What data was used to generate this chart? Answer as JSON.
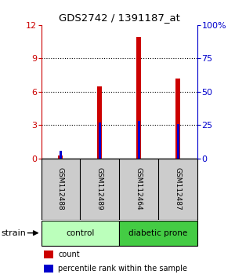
{
  "title": "GDS2742 / 1391187_at",
  "samples": [
    "GSM112488",
    "GSM112489",
    "GSM112464",
    "GSM112487"
  ],
  "counts": [
    0.25,
    6.5,
    10.9,
    7.2
  ],
  "percentile_ranks": [
    5.5,
    27.0,
    28.0,
    25.5
  ],
  "ylim_left": [
    0,
    12
  ],
  "ylim_right": [
    0,
    100
  ],
  "yticks_left": [
    0,
    3,
    6,
    9,
    12
  ],
  "yticks_right": [
    0,
    25,
    50,
    75,
    100
  ],
  "ytick_labels_right": [
    "0",
    "25",
    "50",
    "75",
    "100%"
  ],
  "count_bar_width": 0.12,
  "percentile_bar_width": 0.06,
  "count_color": "#cc0000",
  "percentile_color": "#0000cc",
  "groups": [
    {
      "label": "control",
      "indices": [
        0,
        1
      ],
      "color": "#bbffbb"
    },
    {
      "label": "diabetic prone",
      "indices": [
        2,
        3
      ],
      "color": "#44cc44"
    }
  ],
  "strain_label": "strain",
  "legend_count_label": "count",
  "legend_percentile_label": "percentile rank within the sample",
  "background_color": "#ffffff",
  "sample_bg_color": "#cccccc"
}
